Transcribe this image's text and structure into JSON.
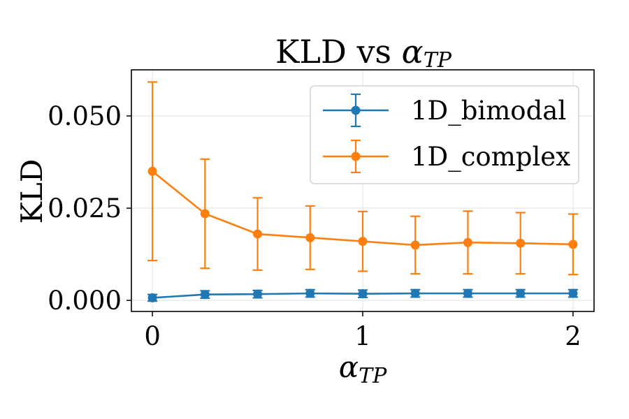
{
  "chart_data": {
    "type": "line",
    "title_text": "KLD vs ",
    "title_symbol": "α",
    "title_subscript": "TP",
    "xlabel_symbol": "α",
    "xlabel_subscript": "TP",
    "ylabel": "KLD",
    "x": [
      0,
      0.25,
      0.5,
      0.75,
      1.0,
      1.25,
      1.5,
      1.75,
      2.0
    ],
    "xlim": [
      -0.1,
      2.1
    ],
    "ylim": [
      -0.003,
      0.0625
    ],
    "xticks": [
      0,
      1,
      2
    ],
    "xtick_labels": [
      "0",
      "1",
      "2"
    ],
    "yticks": [
      0.0,
      0.025,
      0.05
    ],
    "ytick_labels": [
      "0.000",
      "0.025",
      "0.050"
    ],
    "grid": true,
    "legend_position": "top-right",
    "series": [
      {
        "name": "1D_bimodal",
        "color": "#1f77b4",
        "values": [
          0.0007,
          0.0016,
          0.0017,
          0.0019,
          0.0018,
          0.0019,
          0.0019,
          0.0019,
          0.0019
        ],
        "errors": [
          0.0009,
          0.001,
          0.001,
          0.001,
          0.001,
          0.001,
          0.001,
          0.001,
          0.001
        ]
      },
      {
        "name": "1D_complex",
        "color": "#ff7f0e",
        "values": [
          0.035,
          0.0235,
          0.018,
          0.017,
          0.016,
          0.015,
          0.0157,
          0.0155,
          0.0152
        ],
        "errors": [
          0.0242,
          0.0148,
          0.0098,
          0.0086,
          0.0081,
          0.0078,
          0.0085,
          0.0083,
          0.0082
        ]
      }
    ]
  }
}
